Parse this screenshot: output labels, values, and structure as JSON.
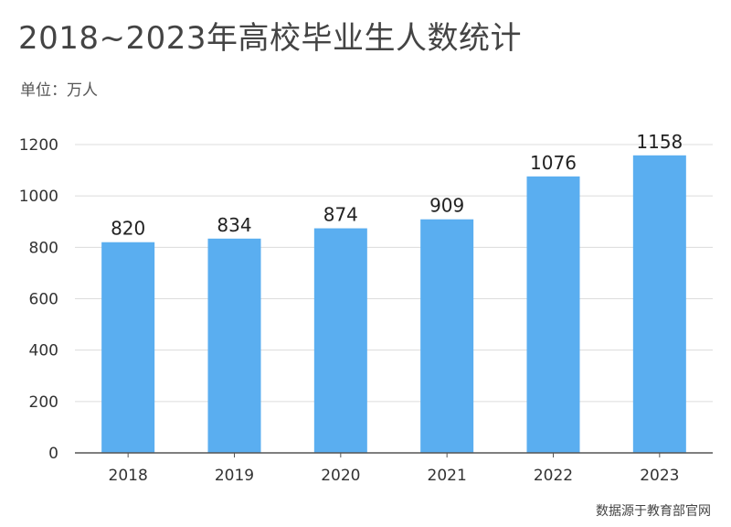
{
  "chart_data": {
    "type": "bar",
    "title": "2018~2023年高校毕业生人数统计",
    "unit_label": "单位：万人",
    "categories": [
      "2018",
      "2019",
      "2020",
      "2021",
      "2022",
      "2023"
    ],
    "values": [
      820,
      834,
      874,
      909,
      1076,
      1158
    ],
    "ylim": [
      0,
      1200
    ],
    "yticks": [
      0,
      200,
      400,
      600,
      800,
      1000,
      1200
    ],
    "ytick_labels": [
      "0",
      "200",
      "400",
      "600",
      "800",
      "1000",
      "1200"
    ],
    "grid": true,
    "bar_color": "#5aaef0",
    "source": "数据源于教育部官网"
  }
}
